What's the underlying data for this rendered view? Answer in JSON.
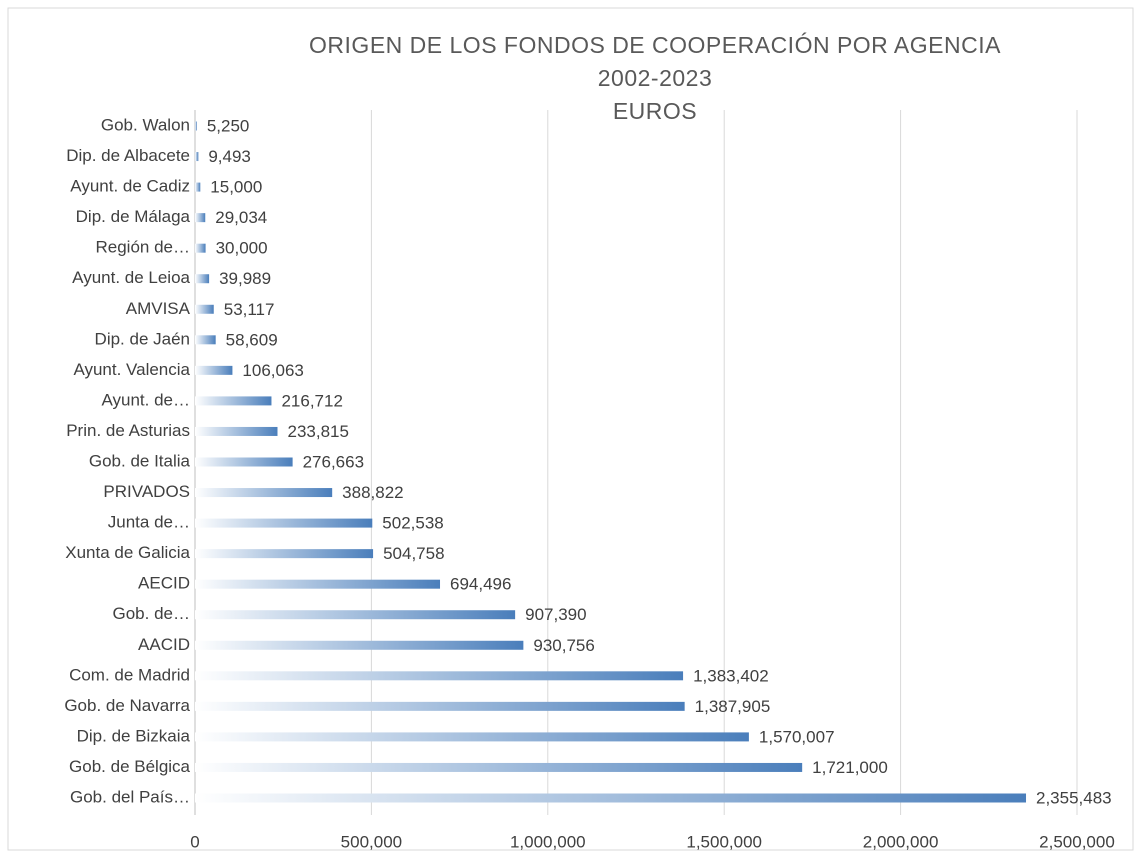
{
  "chart_data": {
    "type": "bar",
    "orientation": "horizontal",
    "title": [
      "ORIGEN DE LOS FONDOS DE COOPERACIÓN POR AGENCIA",
      "2002-2023",
      "EUROS"
    ],
    "categories": [
      "Gob. Walon",
      "Dip. de Albacete",
      "Ayunt. de Cadiz",
      "Dip. de Málaga",
      "Región de…",
      "Ayunt. de Leioa",
      "AMVISA",
      "Dip. de Jaén",
      "Ayunt.  Valencia",
      "Ayunt. de…",
      "Prin. de Asturias",
      "Gob. de Italia",
      "PRIVADOS",
      "Junta de…",
      "Xunta de Galicia",
      "AECID",
      "Gob. de…",
      "AACID",
      "Com. de Madrid ",
      "Gob. de Navarra",
      "Dip. de Bizkaia",
      "Gob. de Bélgica",
      "Gob. del País…"
    ],
    "values": [
      5250,
      9493,
      15000,
      29034,
      30000,
      39989,
      53117,
      58609,
      106063,
      216712,
      233815,
      276663,
      388822,
      502538,
      504758,
      694496,
      907390,
      930756,
      1383402,
      1387905,
      1570007,
      1721000,
      2355483
    ],
    "value_labels": [
      "5,250",
      "9,493",
      "15,000",
      "29,034",
      "30,000",
      "39,989",
      "53,117",
      "58,609",
      "106,063",
      "216,712",
      "233,815",
      "276,663",
      "388,822",
      "502,538",
      "504,758",
      "694,496",
      "907,390",
      "930,756",
      "1,383,402",
      "1,387,905",
      "1,570,007",
      "1,721,000",
      "2,355,483"
    ],
    "color": "#4a7ebb",
    "xlim": [
      0,
      2500000
    ],
    "xticks": [
      0,
      {
        "value": 500000,
        "label": "500,000"
      },
      {
        "value": 1000000,
        "label": "1,000,000"
      },
      {
        "value": 1500000,
        "label": "1,500,000"
      },
      {
        "value": 2000000,
        "label": "2,000,000"
      },
      {
        "value": 2500000,
        "label": "2,500,000"
      }
    ],
    "grid": true
  }
}
